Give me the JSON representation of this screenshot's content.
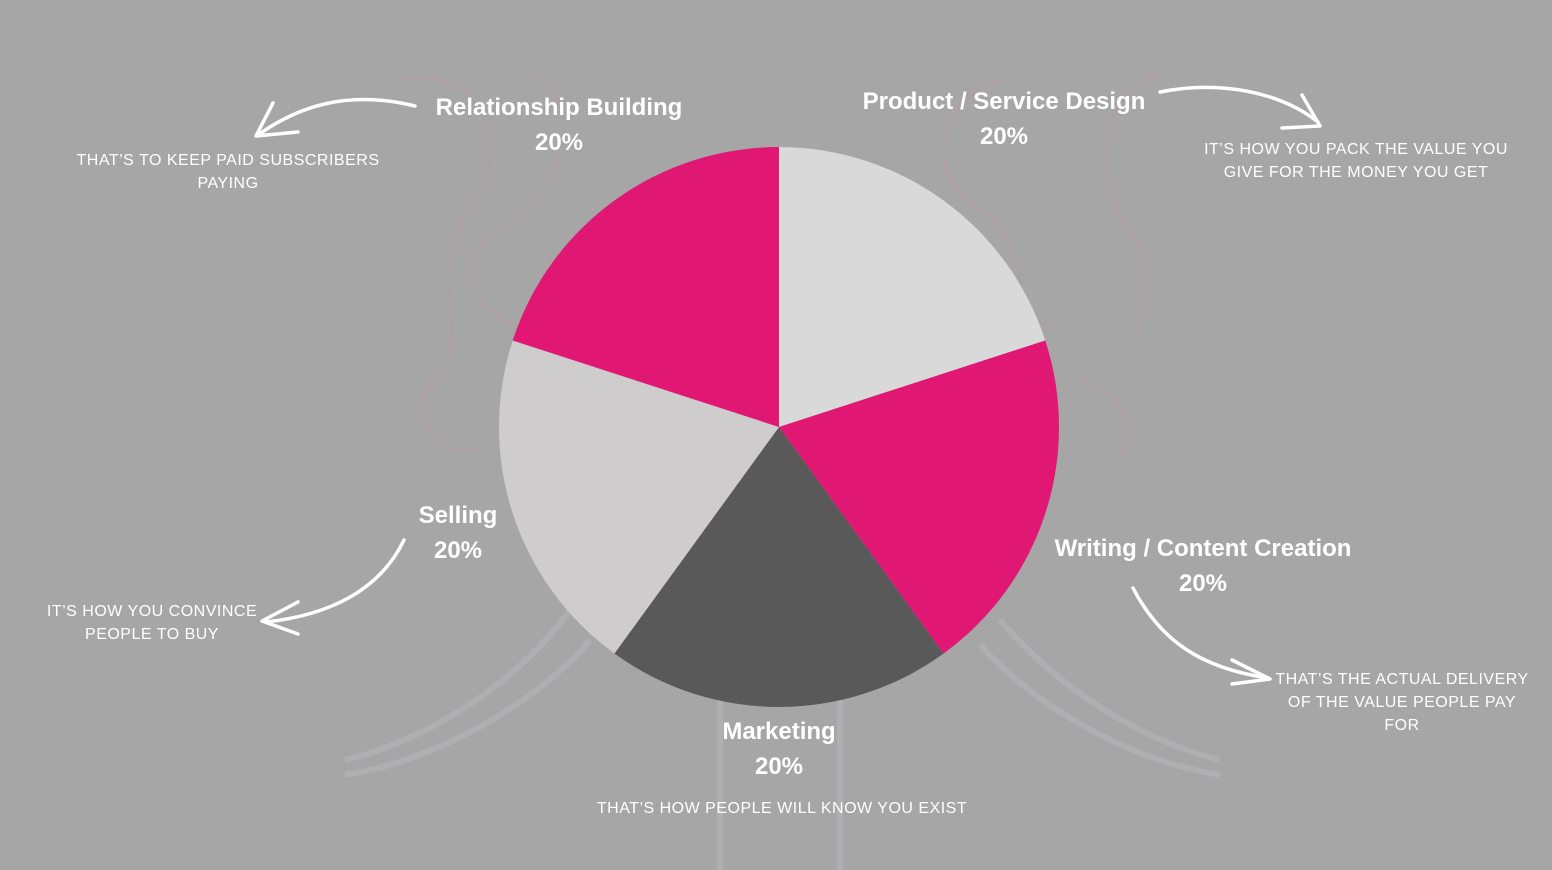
{
  "chart_data": {
    "type": "pie",
    "slices": [
      {
        "label": "Product / Service Design",
        "value": 20,
        "value_label": "20%",
        "color": "#d9d9d9",
        "note": "IT’S HOW YOU PACK THE VALUE YOU GIVE FOR THE MONEY YOU GET"
      },
      {
        "label": "Writing / Content Creation",
        "value": 20,
        "value_label": "20%",
        "color": "#e01874",
        "note": "THAT’S THE ACTUAL DELIVERY OF THE VALUE PEOPLE PAY FOR"
      },
      {
        "label": "Marketing",
        "value": 20,
        "value_label": "20%",
        "color": "#595959",
        "note": "THAT’S HOW PEOPLE WILL KNOW YOU EXIST"
      },
      {
        "label": "Selling",
        "value": 20,
        "value_label": "20%",
        "color": "#cecccd",
        "note": "IT’S HOW YOU CONVINCE PEOPLE TO BUY"
      },
      {
        "label": "Relationship Building",
        "value": 20,
        "value_label": "20%",
        "color": "#e01874",
        "note": "THAT’S TO KEEP PAID SUBSCRIBERS PAYING"
      }
    ],
    "colors": {
      "background": "#a6a6a6",
      "text": "#ffffff"
    }
  }
}
